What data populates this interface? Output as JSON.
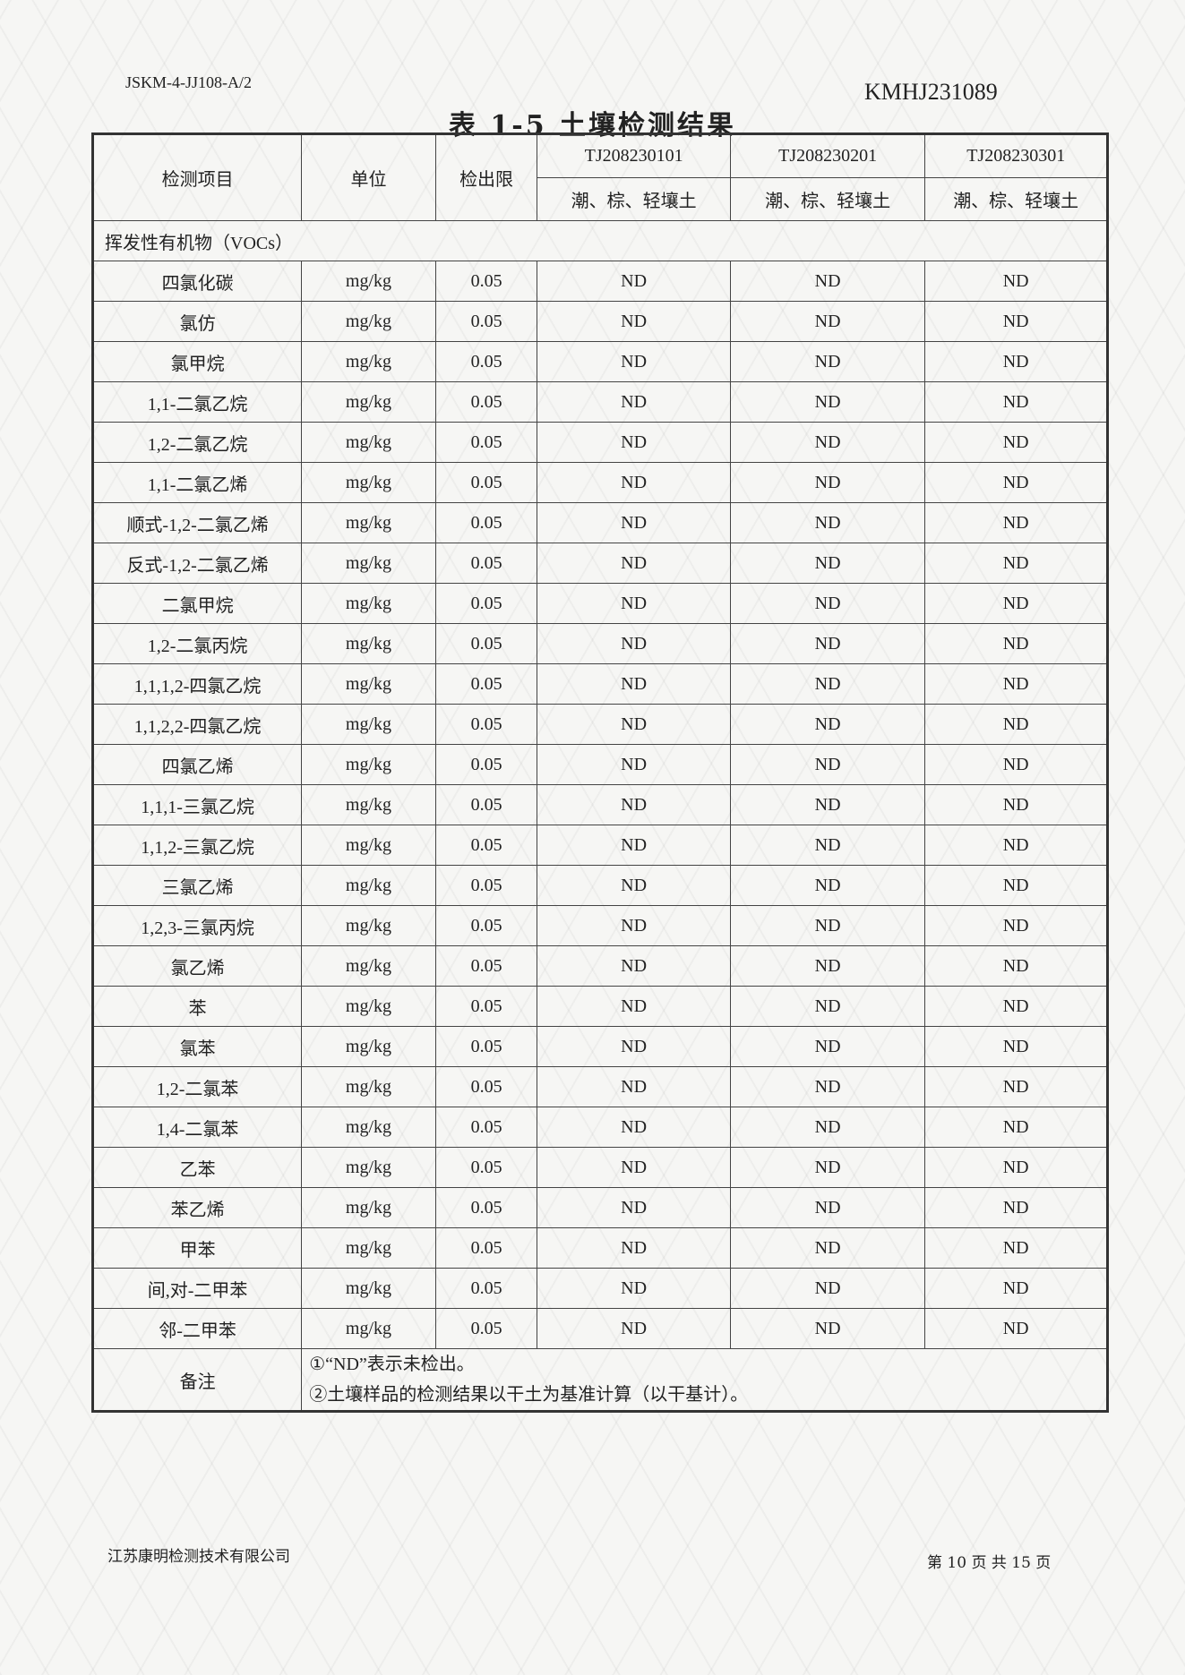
{
  "header": {
    "doc_code": "JSKM-4-JJ108-A/2",
    "report_no": "KMHJ231089",
    "title": "表 1-5  土壤检测结果"
  },
  "table": {
    "columns": {
      "item": "检测项目",
      "unit": "单位",
      "limit": "检出限"
    },
    "samples": [
      {
        "id": "TJ208230101",
        "desc": "潮、棕、轻壤土"
      },
      {
        "id": "TJ208230201",
        "desc": "潮、棕、轻壤土"
      },
      {
        "id": "TJ208230301",
        "desc": "潮、棕、轻壤土"
      }
    ],
    "section": "挥发性有机物（VOCs）",
    "rows": [
      {
        "item": "四氯化碳",
        "unit": "mg/kg",
        "limit": "0.05",
        "r1": "ND",
        "r2": "ND",
        "r3": "ND"
      },
      {
        "item": "氯仿",
        "unit": "mg/kg",
        "limit": "0.05",
        "r1": "ND",
        "r2": "ND",
        "r3": "ND"
      },
      {
        "item": "氯甲烷",
        "unit": "mg/kg",
        "limit": "0.05",
        "r1": "ND",
        "r2": "ND",
        "r3": "ND"
      },
      {
        "item": "1,1-二氯乙烷",
        "unit": "mg/kg",
        "limit": "0.05",
        "r1": "ND",
        "r2": "ND",
        "r3": "ND"
      },
      {
        "item": "1,2-二氯乙烷",
        "unit": "mg/kg",
        "limit": "0.05",
        "r1": "ND",
        "r2": "ND",
        "r3": "ND"
      },
      {
        "item": "1,1-二氯乙烯",
        "unit": "mg/kg",
        "limit": "0.05",
        "r1": "ND",
        "r2": "ND",
        "r3": "ND"
      },
      {
        "item": "顺式-1,2-二氯乙烯",
        "unit": "mg/kg",
        "limit": "0.05",
        "r1": "ND",
        "r2": "ND",
        "r3": "ND"
      },
      {
        "item": "反式-1,2-二氯乙烯",
        "unit": "mg/kg",
        "limit": "0.05",
        "r1": "ND",
        "r2": "ND",
        "r3": "ND"
      },
      {
        "item": "二氯甲烷",
        "unit": "mg/kg",
        "limit": "0.05",
        "r1": "ND",
        "r2": "ND",
        "r3": "ND"
      },
      {
        "item": "1,2-二氯丙烷",
        "unit": "mg/kg",
        "limit": "0.05",
        "r1": "ND",
        "r2": "ND",
        "r3": "ND"
      },
      {
        "item": "1,1,1,2-四氯乙烷",
        "unit": "mg/kg",
        "limit": "0.05",
        "r1": "ND",
        "r2": "ND",
        "r3": "ND"
      },
      {
        "item": "1,1,2,2-四氯乙烷",
        "unit": "mg/kg",
        "limit": "0.05",
        "r1": "ND",
        "r2": "ND",
        "r3": "ND"
      },
      {
        "item": "四氯乙烯",
        "unit": "mg/kg",
        "limit": "0.05",
        "r1": "ND",
        "r2": "ND",
        "r3": "ND"
      },
      {
        "item": "1,1,1-三氯乙烷",
        "unit": "mg/kg",
        "limit": "0.05",
        "r1": "ND",
        "r2": "ND",
        "r3": "ND"
      },
      {
        "item": "1,1,2-三氯乙烷",
        "unit": "mg/kg",
        "limit": "0.05",
        "r1": "ND",
        "r2": "ND",
        "r3": "ND"
      },
      {
        "item": "三氯乙烯",
        "unit": "mg/kg",
        "limit": "0.05",
        "r1": "ND",
        "r2": "ND",
        "r3": "ND"
      },
      {
        "item": "1,2,3-三氯丙烷",
        "unit": "mg/kg",
        "limit": "0.05",
        "r1": "ND",
        "r2": "ND",
        "r3": "ND"
      },
      {
        "item": "氯乙烯",
        "unit": "mg/kg",
        "limit": "0.05",
        "r1": "ND",
        "r2": "ND",
        "r3": "ND"
      },
      {
        "item": "苯",
        "unit": "mg/kg",
        "limit": "0.05",
        "r1": "ND",
        "r2": "ND",
        "r3": "ND"
      },
      {
        "item": "氯苯",
        "unit": "mg/kg",
        "limit": "0.05",
        "r1": "ND",
        "r2": "ND",
        "r3": "ND"
      },
      {
        "item": "1,2-二氯苯",
        "unit": "mg/kg",
        "limit": "0.05",
        "r1": "ND",
        "r2": "ND",
        "r3": "ND"
      },
      {
        "item": "1,4-二氯苯",
        "unit": "mg/kg",
        "limit": "0.05",
        "r1": "ND",
        "r2": "ND",
        "r3": "ND"
      },
      {
        "item": "乙苯",
        "unit": "mg/kg",
        "limit": "0.05",
        "r1": "ND",
        "r2": "ND",
        "r3": "ND"
      },
      {
        "item": "苯乙烯",
        "unit": "mg/kg",
        "limit": "0.05",
        "r1": "ND",
        "r2": "ND",
        "r3": "ND"
      },
      {
        "item": "甲苯",
        "unit": "mg/kg",
        "limit": "0.05",
        "r1": "ND",
        "r2": "ND",
        "r3": "ND"
      },
      {
        "item": "间,对-二甲苯",
        "unit": "mg/kg",
        "limit": "0.05",
        "r1": "ND",
        "r2": "ND",
        "r3": "ND"
      },
      {
        "item": "邻-二甲苯",
        "unit": "mg/kg",
        "limit": "0.05",
        "r1": "ND",
        "r2": "ND",
        "r3": "ND"
      }
    ],
    "remark": {
      "label": "备注",
      "notes": [
        "①“ND”表示未检出。",
        "②土壤样品的检测结果以干土为基准计算（以干基计）。"
      ]
    }
  },
  "footer": {
    "company": "江苏康明检测技术有限公司",
    "page": "第 10 页 共 15 页"
  }
}
